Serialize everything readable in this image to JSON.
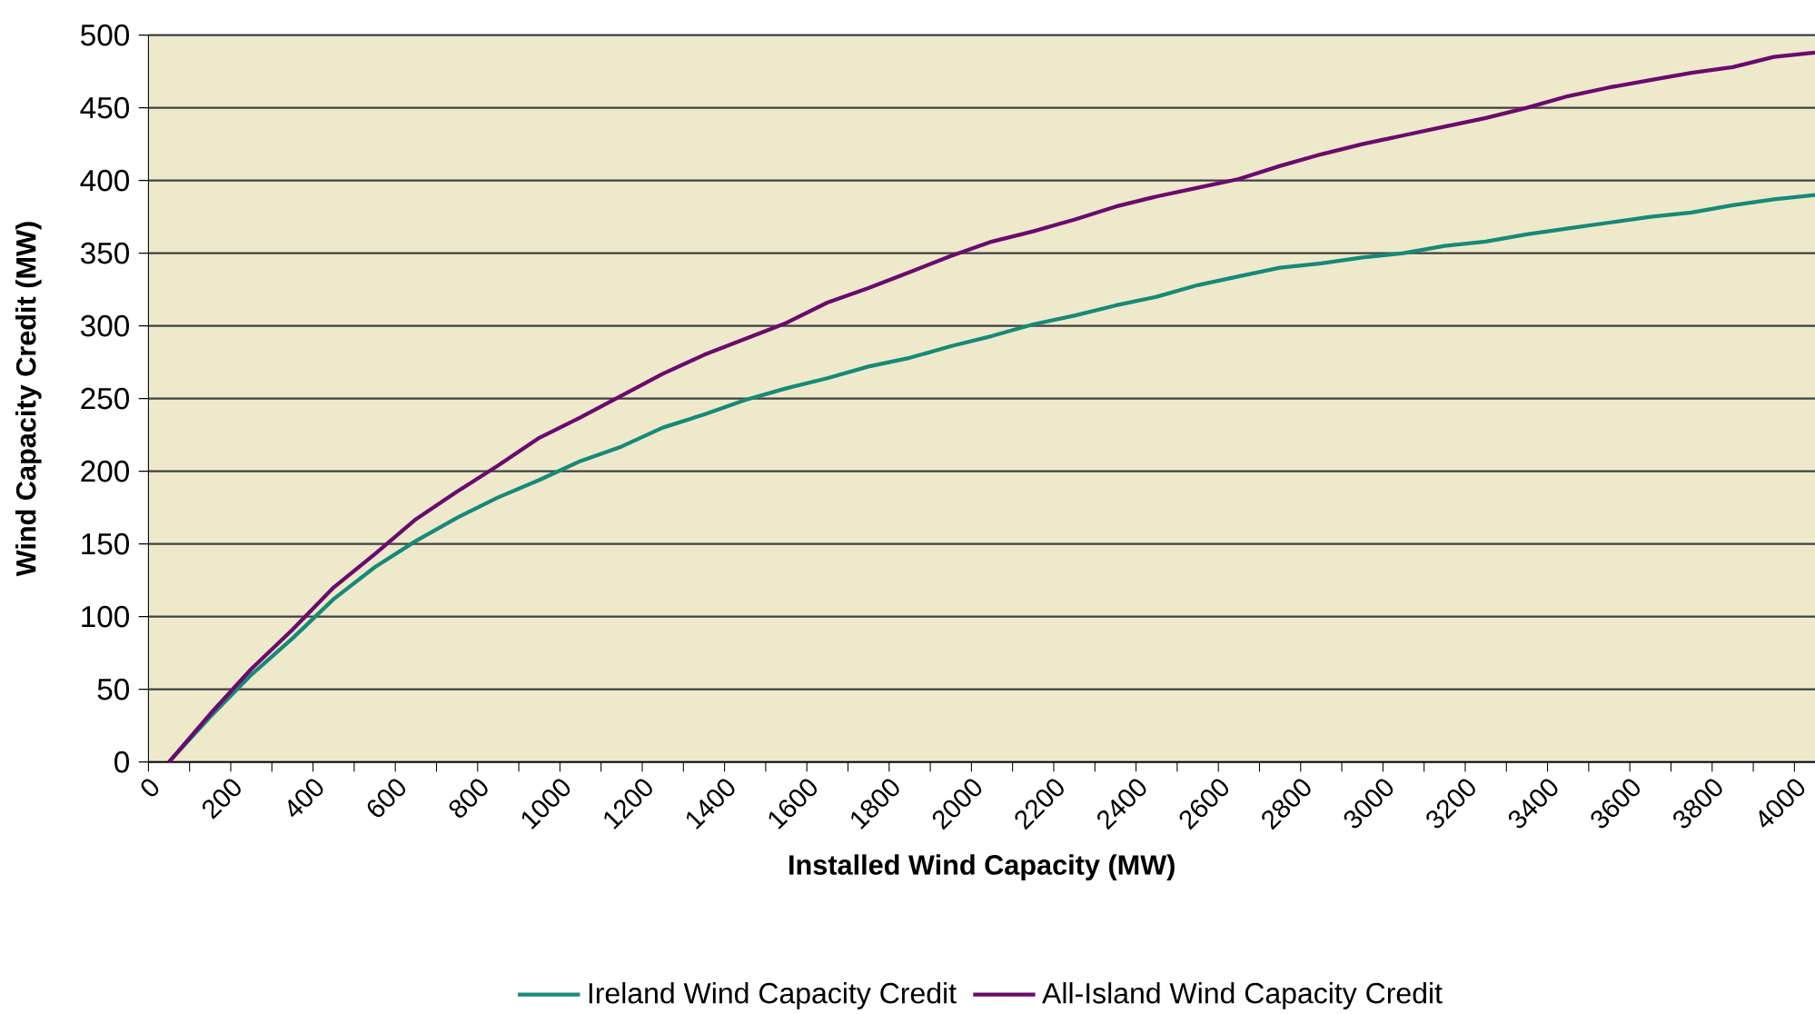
{
  "chart_data": {
    "type": "line",
    "xlabel": "Installed Wind Capacity (MW)",
    "ylabel": "Wind Capacity Credit (MW)",
    "x": [
      50,
      150,
      250,
      350,
      450,
      550,
      650,
      750,
      850,
      950,
      1050,
      1150,
      1250,
      1350,
      1450,
      1550,
      1650,
      1750,
      1850,
      1950,
      2050,
      2150,
      2250,
      2350,
      2450,
      2550,
      2650,
      2750,
      2850,
      2950,
      3050,
      3150,
      3250,
      3350,
      3450,
      3550,
      3650,
      3750,
      3850,
      3950,
      4050
    ],
    "series": [
      {
        "name": "Ireland Wind Capacity Credit",
        "color": "#168a78",
        "values": [
          0,
          31,
          60,
          85,
          112,
          134,
          152,
          168,
          182,
          194,
          207,
          217,
          230,
          239,
          249,
          257,
          264,
          272,
          278,
          286,
          293,
          301,
          307,
          314,
          320,
          328,
          334,
          340,
          343,
          347,
          350,
          355,
          358,
          363,
          367,
          371,
          375,
          378,
          383,
          387,
          390
        ]
      },
      {
        "name": "All-Island Wind Capacity Credit",
        "color": "#6a0a6e",
        "values": [
          0,
          33,
          64,
          91,
          120,
          143,
          167,
          186,
          204,
          223,
          237,
          252,
          267,
          280,
          291,
          302,
          316,
          326,
          337,
          348,
          358,
          365,
          373,
          382,
          389,
          395,
          401,
          410,
          418,
          425,
          431,
          437,
          443,
          450,
          458,
          464,
          469,
          474,
          478,
          485,
          488
        ]
      }
    ],
    "xlim": [
      0,
      4050
    ],
    "ylim": [
      0,
      500
    ],
    "xticks": [
      0,
      {
        "value": 100,
        "label": null
      },
      200,
      {
        "value": 300,
        "label": null
      },
      400,
      {
        "value": 500,
        "label": null
      },
      600,
      {
        "value": 700,
        "label": null
      },
      800,
      {
        "value": 900,
        "label": null
      },
      1000,
      {
        "value": 1100,
        "label": null
      },
      1200,
      {
        "value": 1300,
        "label": null
      },
      1400,
      {
        "value": 1500,
        "label": null
      },
      1600,
      {
        "value": 1700,
        "label": null
      },
      1800,
      {
        "value": 1900,
        "label": null
      },
      2000,
      {
        "value": 2100,
        "label": null
      },
      2200,
      {
        "value": 2300,
        "label": null
      },
      2400,
      {
        "value": 2500,
        "label": null
      },
      2600,
      {
        "value": 2700,
        "label": null
      },
      2800,
      {
        "value": 2900,
        "label": null
      },
      3000,
      {
        "value": 3100,
        "label": null
      },
      3200,
      {
        "value": 3300,
        "label": null
      },
      3400,
      {
        "value": 3500,
        "label": null
      },
      3600,
      {
        "value": 3700,
        "label": null
      },
      3800,
      {
        "value": 3900,
        "label": null
      },
      4000
    ],
    "yticks": [
      0,
      50,
      100,
      150,
      200,
      250,
      300,
      350,
      400,
      450,
      500
    ],
    "grid": "y",
    "legend": "bottom"
  }
}
